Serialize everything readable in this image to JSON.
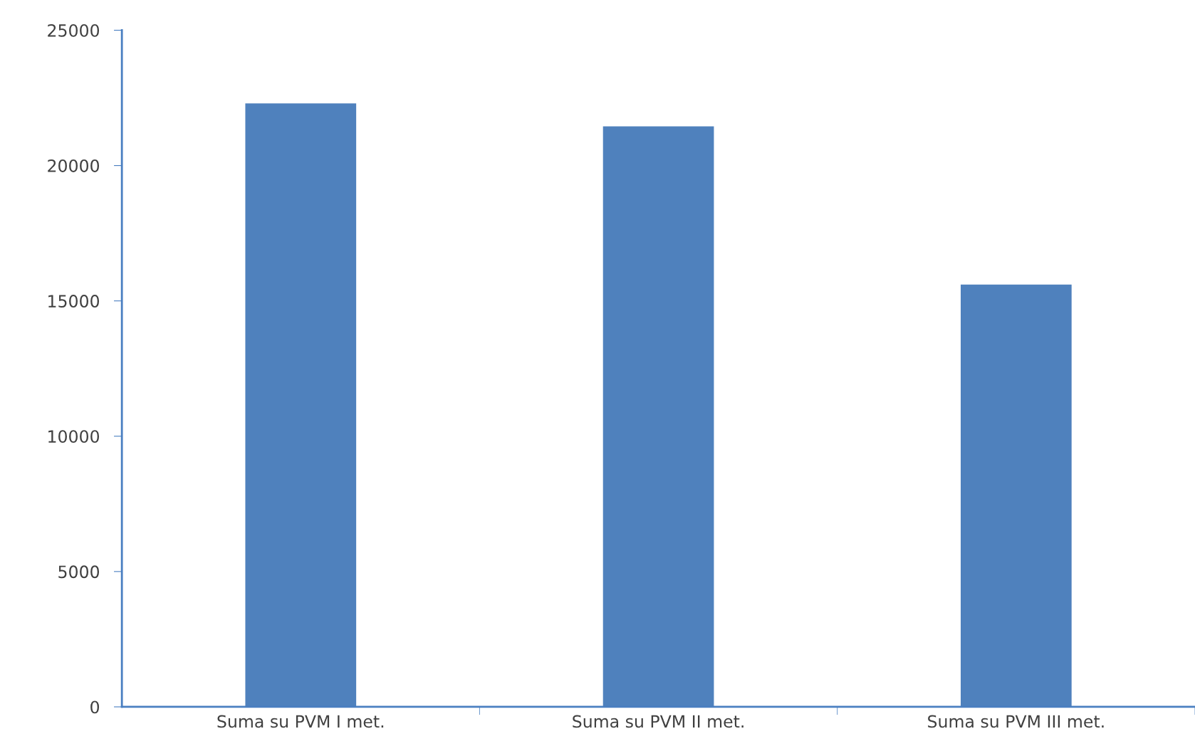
{
  "chart_data": {
    "type": "bar",
    "categories": [
      "Suma su PVM I met.",
      "Suma su PVM II met.",
      "Suma su PVM III met."
    ],
    "values": [
      22300,
      21450,
      15600
    ],
    "color": "#4f81bd",
    "ylim": [
      0,
      25000
    ],
    "yticks": [
      0,
      5000,
      10000,
      15000,
      20000,
      25000
    ],
    "grid": false,
    "legend": false
  }
}
